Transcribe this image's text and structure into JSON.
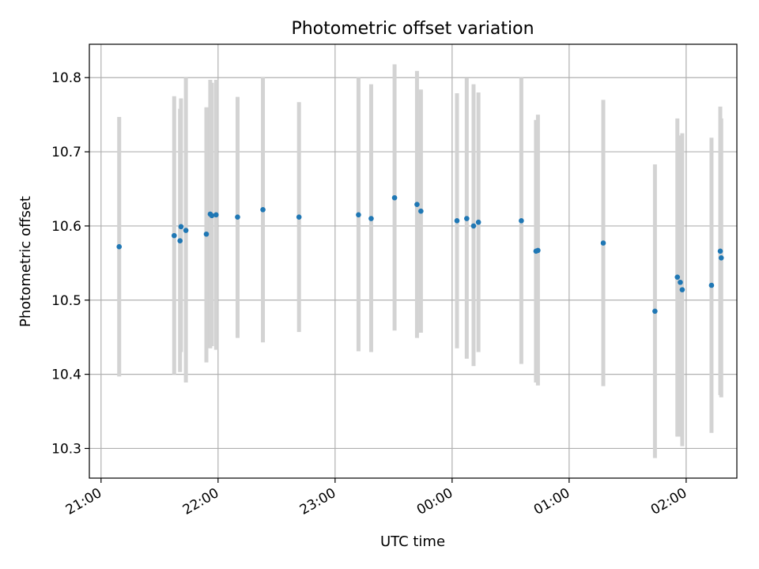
{
  "chart_data": {
    "type": "scatter",
    "title": "Photometric offset variation",
    "xlabel": "UTC time",
    "ylabel": "Photometric offset",
    "x_ticks": [
      "21:00",
      "22:00",
      "23:00",
      "00:00",
      "01:00",
      "02:00"
    ],
    "y_ticks": [
      "10.3",
      "10.4",
      "10.5",
      "10.6",
      "10.7",
      "10.8"
    ],
    "x_unit": "minutes after 21:00 UTC",
    "xlim": [
      -6,
      326
    ],
    "ylim": [
      10.26,
      10.845
    ],
    "grid": true,
    "marker_color": "#1f77b4",
    "errorbar_color": "#d3d3d3",
    "grid_color": "#b0b0b0",
    "points": [
      {
        "x": 9.3,
        "y": 10.572,
        "lo": 10.397,
        "hi": 10.747
      },
      {
        "x": 37.5,
        "y": 10.587,
        "lo": 10.4,
        "hi": 10.775
      },
      {
        "x": 40.5,
        "y": 10.58,
        "lo": 10.403,
        "hi": 10.758
      },
      {
        "x": 41.0,
        "y": 10.599,
        "lo": 10.43,
        "hi": 10.772
      },
      {
        "x": 43.5,
        "y": 10.594,
        "lo": 10.389,
        "hi": 10.8
      },
      {
        "x": 54.0,
        "y": 10.589,
        "lo": 10.416,
        "hi": 10.76
      },
      {
        "x": 56.0,
        "y": 10.616,
        "lo": 10.435,
        "hi": 10.797
      },
      {
        "x": 56.8,
        "y": 10.614,
        "lo": 10.438,
        "hi": 10.793
      },
      {
        "x": 59.0,
        "y": 10.615,
        "lo": 10.433,
        "hi": 10.797
      },
      {
        "x": 70.0,
        "y": 10.612,
        "lo": 10.449,
        "hi": 10.774
      },
      {
        "x": 83.0,
        "y": 10.622,
        "lo": 10.443,
        "hi": 10.801
      },
      {
        "x": 101.5,
        "y": 10.612,
        "lo": 10.457,
        "hi": 10.767
      },
      {
        "x": 132.0,
        "y": 10.615,
        "lo": 10.431,
        "hi": 10.8
      },
      {
        "x": 138.5,
        "y": 10.61,
        "lo": 10.43,
        "hi": 10.791
      },
      {
        "x": 150.5,
        "y": 10.638,
        "lo": 10.459,
        "hi": 10.818
      },
      {
        "x": 162.0,
        "y": 10.629,
        "lo": 10.449,
        "hi": 10.809
      },
      {
        "x": 164.0,
        "y": 10.62,
        "lo": 10.456,
        "hi": 10.784
      },
      {
        "x": 182.5,
        "y": 10.607,
        "lo": 10.435,
        "hi": 10.779
      },
      {
        "x": 187.5,
        "y": 10.61,
        "lo": 10.421,
        "hi": 10.799
      },
      {
        "x": 191.0,
        "y": 10.6,
        "lo": 10.411,
        "hi": 10.791
      },
      {
        "x": 193.5,
        "y": 10.605,
        "lo": 10.43,
        "hi": 10.78
      },
      {
        "x": 215.5,
        "y": 10.607,
        "lo": 10.414,
        "hi": 10.8
      },
      {
        "x": 223.0,
        "y": 10.566,
        "lo": 10.389,
        "hi": 10.743
      },
      {
        "x": 224.0,
        "y": 10.567,
        "lo": 10.385,
        "hi": 10.75
      },
      {
        "x": 257.5,
        "y": 10.577,
        "lo": 10.384,
        "hi": 10.77
      },
      {
        "x": 284.0,
        "y": 10.485,
        "lo": 10.287,
        "hi": 10.683
      },
      {
        "x": 295.5,
        "y": 10.531,
        "lo": 10.316,
        "hi": 10.745
      },
      {
        "x": 297.0,
        "y": 10.524,
        "lo": 10.316,
        "hi": 10.722
      },
      {
        "x": 298.0,
        "y": 10.514,
        "lo": 10.303,
        "hi": 10.725
      },
      {
        "x": 313.0,
        "y": 10.52,
        "lo": 10.321,
        "hi": 10.719
      },
      {
        "x": 317.5,
        "y": 10.566,
        "lo": 10.372,
        "hi": 10.761
      },
      {
        "x": 318.0,
        "y": 10.557,
        "lo": 10.369,
        "hi": 10.745
      }
    ]
  }
}
